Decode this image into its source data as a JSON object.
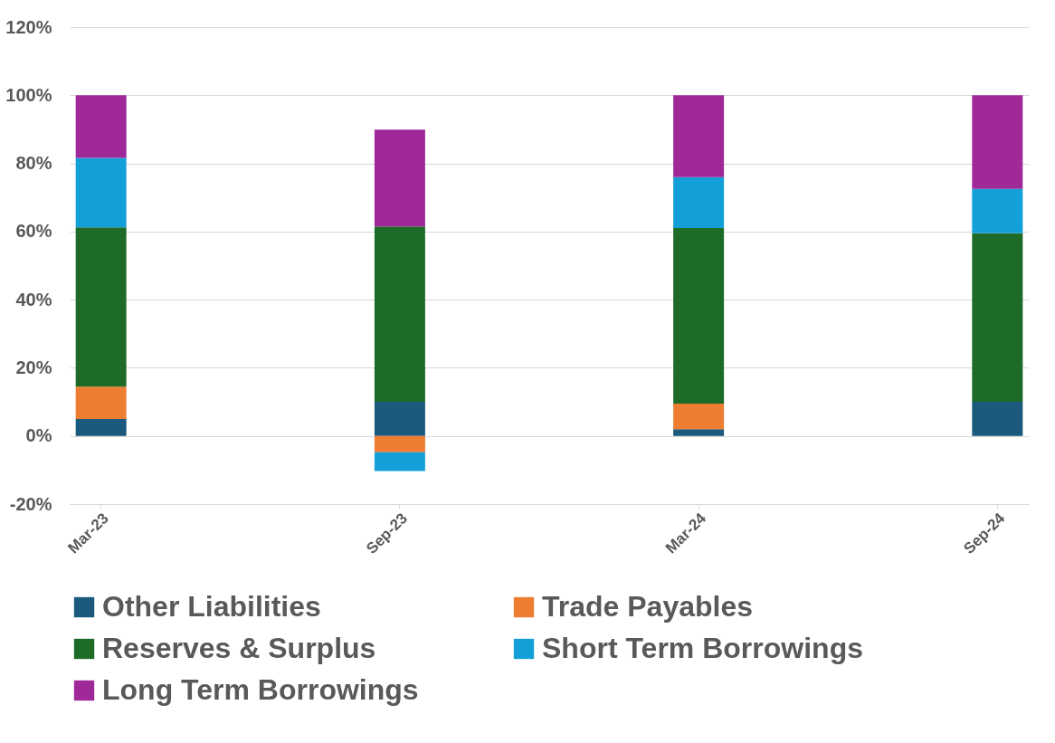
{
  "chart_data": {
    "type": "bar",
    "stacked": true,
    "categories": [
      "Mar-23",
      "Sep-23",
      "Mar-24",
      "Sep-24"
    ],
    "series": [
      {
        "name": "Other Liabilities",
        "color": "#1b5a7d",
        "values": [
          5,
          10,
          2,
          10
        ]
      },
      {
        "name": "Trade Payables",
        "color": "#ed7d31",
        "values": [
          9.5,
          -4.8,
          7.5,
          0
        ]
      },
      {
        "name": "Reserves & Surplus",
        "color": "#1e6b28",
        "values": [
          46.7,
          51.5,
          51.5,
          49.5
        ]
      },
      {
        "name": "Short Term Borrowings",
        "color": "#13a0d8",
        "values": [
          20.4,
          -5.5,
          15,
          13
        ]
      },
      {
        "name": "Long Term Borrowings",
        "color": "#a0299a",
        "values": [
          18.4,
          28.4,
          24,
          27.5
        ]
      }
    ],
    "ylim": [
      -20,
      120
    ],
    "yticks": [
      {
        "value": -20,
        "label": "-20%"
      },
      {
        "value": 0,
        "label": "0%"
      },
      {
        "value": 20,
        "label": "20%"
      },
      {
        "value": 40,
        "label": "40%"
      },
      {
        "value": 60,
        "label": "60%"
      },
      {
        "value": 80,
        "label": "80%"
      },
      {
        "value": 100,
        "label": "100%"
      },
      {
        "value": 120,
        "label": "120%"
      }
    ],
    "grid": "y",
    "legend": "bottom"
  }
}
